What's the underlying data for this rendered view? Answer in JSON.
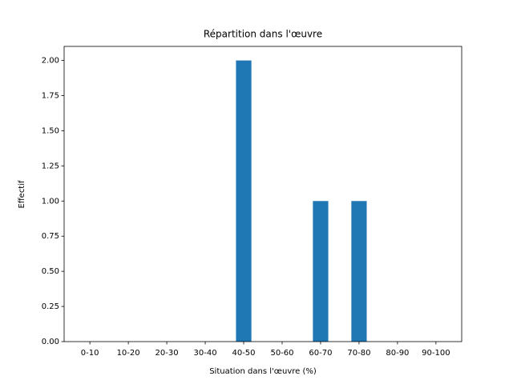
{
  "chart_data": {
    "type": "bar",
    "title": "Répartition dans l'œuvre",
    "x_label": "Situation dans l'œuvre (%)",
    "y_label": "Effectif",
    "categories": [
      "0-10",
      "10-20",
      "20-30",
      "30-40",
      "40-50",
      "50-60",
      "60-70",
      "70-80",
      "80-90",
      "90-100"
    ],
    "values": [
      0,
      0,
      0,
      0,
      2,
      0,
      1,
      1,
      0,
      0
    ],
    "color": "#1f77b4",
    "ylim": [
      0,
      2.1
    ],
    "yticks": [
      {
        "value": 0,
        "label": "0.00"
      },
      {
        "value": 0.25,
        "label": "0.25"
      },
      {
        "value": 0.5,
        "label": "0.50"
      },
      {
        "value": 0.75,
        "label": "0.75"
      },
      {
        "value": 1,
        "label": "1.00"
      },
      {
        "value": 1.25,
        "label": "1.25"
      },
      {
        "value": 1.5,
        "label": "1.50"
      },
      {
        "value": 1.75,
        "label": "1.75"
      },
      {
        "value": 2,
        "label": "2.00"
      }
    ],
    "grid": false
  }
}
